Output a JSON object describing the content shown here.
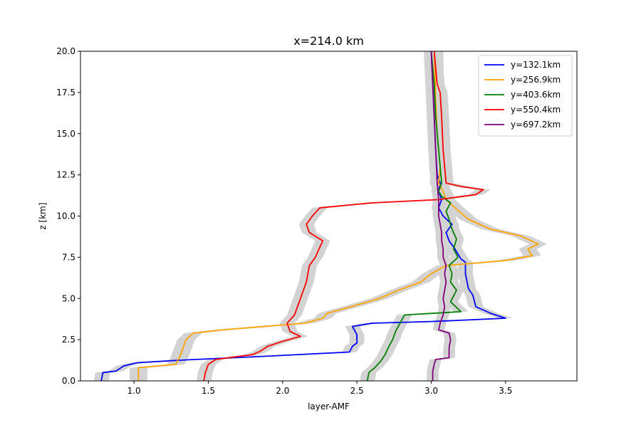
{
  "chart_data": {
    "type": "line",
    "title": "x=214.0 km",
    "xlabel": "layer-AMF",
    "ylabel": "z [km]",
    "xlim": [
      0.64,
      3.98
    ],
    "ylim": [
      0,
      20
    ],
    "xticks": [
      "1.0",
      "1.5",
      "2.0",
      "2.5",
      "3.0",
      "3.5"
    ],
    "yticks": [
      "0.0",
      "2.5",
      "5.0",
      "7.5",
      "10.0",
      "12.5",
      "15.0",
      "17.5",
      "20.0"
    ],
    "grid": false,
    "legend_position": "top-right",
    "uncertainty_band": "gray shading around each series",
    "series": [
      {
        "name": "y=132.1km",
        "color": "#0000ff",
        "band": 0.05,
        "points": [
          [
            0.78,
            0.0
          ],
          [
            0.79,
            0.5
          ],
          [
            0.88,
            0.6
          ],
          [
            0.93,
            0.9
          ],
          [
            1.02,
            1.1
          ],
          [
            1.3,
            1.25
          ],
          [
            1.9,
            1.5
          ],
          [
            2.45,
            1.75
          ],
          [
            2.47,
            2.1
          ],
          [
            2.5,
            2.3
          ],
          [
            2.5,
            2.8
          ],
          [
            2.47,
            3.3
          ],
          [
            2.6,
            3.5
          ],
          [
            3.0,
            3.6
          ],
          [
            3.5,
            3.8
          ],
          [
            3.4,
            4.1
          ],
          [
            3.3,
            4.5
          ],
          [
            3.28,
            5.2
          ],
          [
            3.25,
            5.6
          ],
          [
            3.23,
            6.5
          ],
          [
            3.23,
            7.2
          ],
          [
            3.2,
            7.4
          ],
          [
            3.16,
            8.0
          ],
          [
            3.12,
            8.5
          ],
          [
            3.1,
            9.0
          ],
          [
            3.14,
            9.5
          ],
          [
            3.08,
            10.0
          ],
          [
            3.05,
            10.5
          ],
          [
            3.07,
            11.0
          ],
          [
            3.05,
            11.5
          ],
          [
            3.06,
            12.0
          ],
          [
            3.04,
            12.5
          ],
          [
            3.03,
            14.0
          ],
          [
            3.02,
            16.0
          ],
          [
            3.01,
            18.0
          ],
          [
            3.0,
            20.0
          ]
        ]
      },
      {
        "name": "y=256.9km",
        "color": "#ffa500",
        "band": 0.06,
        "points": [
          [
            1.03,
            0.0
          ],
          [
            1.03,
            0.8
          ],
          [
            1.28,
            1.0
          ],
          [
            1.31,
            1.5
          ],
          [
            1.33,
            2.0
          ],
          [
            1.35,
            2.5
          ],
          [
            1.4,
            2.9
          ],
          [
            1.6,
            3.1
          ],
          [
            2.15,
            3.5
          ],
          [
            2.27,
            3.8
          ],
          [
            2.3,
            4.1
          ],
          [
            2.5,
            4.6
          ],
          [
            2.65,
            5.0
          ],
          [
            2.78,
            5.5
          ],
          [
            2.93,
            6.0
          ],
          [
            3.0,
            6.5
          ],
          [
            3.1,
            7.0
          ],
          [
            3.5,
            7.3
          ],
          [
            3.68,
            7.6
          ],
          [
            3.65,
            8.0
          ],
          [
            3.72,
            8.3
          ],
          [
            3.6,
            8.8
          ],
          [
            3.4,
            9.2
          ],
          [
            3.25,
            9.8
          ],
          [
            3.16,
            10.5
          ],
          [
            3.1,
            11.0
          ],
          [
            3.08,
            11.5
          ],
          [
            3.05,
            12.0
          ],
          [
            3.06,
            13.0
          ],
          [
            3.04,
            15.0
          ],
          [
            3.03,
            17.0
          ],
          [
            3.02,
            20.0
          ]
        ]
      },
      {
        "name": "y=403.6km",
        "color": "#008000",
        "band": 0.05,
        "points": [
          [
            2.57,
            0.0
          ],
          [
            2.58,
            0.5
          ],
          [
            2.62,
            0.8
          ],
          [
            2.66,
            1.2
          ],
          [
            2.69,
            1.6
          ],
          [
            2.71,
            2.0
          ],
          [
            2.74,
            2.5
          ],
          [
            2.76,
            3.0
          ],
          [
            2.79,
            3.5
          ],
          [
            2.82,
            4.0
          ],
          [
            3.2,
            4.2
          ],
          [
            3.13,
            4.8
          ],
          [
            3.17,
            5.5
          ],
          [
            3.13,
            6.0
          ],
          [
            3.14,
            6.5
          ],
          [
            3.12,
            7.0
          ],
          [
            3.18,
            7.5
          ],
          [
            3.15,
            8.0
          ],
          [
            3.17,
            8.6
          ],
          [
            3.14,
            9.2
          ],
          [
            3.12,
            9.8
          ],
          [
            3.1,
            10.3
          ],
          [
            3.13,
            10.8
          ],
          [
            3.07,
            11.2
          ],
          [
            3.05,
            11.5
          ],
          [
            3.07,
            12.0
          ],
          [
            3.06,
            13.0
          ],
          [
            3.05,
            14.0
          ],
          [
            3.04,
            15.0
          ],
          [
            3.03,
            16.0
          ],
          [
            3.02,
            18.0
          ],
          [
            3.0,
            20.0
          ]
        ]
      },
      {
        "name": "y=550.4km",
        "color": "#ff0000",
        "band": 0.05,
        "points": [
          [
            1.47,
            0.0
          ],
          [
            1.48,
            0.5
          ],
          [
            1.5,
            1.0
          ],
          [
            1.55,
            1.3
          ],
          [
            1.8,
            1.6
          ],
          [
            1.85,
            1.8
          ],
          [
            1.9,
            2.1
          ],
          [
            2.0,
            2.4
          ],
          [
            2.12,
            2.7
          ],
          [
            2.05,
            3.0
          ],
          [
            2.03,
            3.5
          ],
          [
            2.08,
            4.0
          ],
          [
            2.12,
            5.0
          ],
          [
            2.16,
            6.0
          ],
          [
            2.18,
            7.0
          ],
          [
            2.22,
            7.5
          ],
          [
            2.27,
            8.5
          ],
          [
            2.18,
            9.0
          ],
          [
            2.16,
            9.5
          ],
          [
            2.2,
            10.0
          ],
          [
            2.25,
            10.5
          ],
          [
            2.6,
            10.8
          ],
          [
            3.05,
            11.0
          ],
          [
            3.3,
            11.3
          ],
          [
            3.35,
            11.6
          ],
          [
            3.2,
            11.8
          ],
          [
            3.1,
            12.0
          ],
          [
            3.08,
            14.0
          ],
          [
            3.07,
            16.0
          ],
          [
            3.06,
            17.5
          ],
          [
            3.04,
            18.0
          ],
          [
            3.02,
            20.0
          ]
        ]
      },
      {
        "name": "y=697.2km",
        "color": "#800080",
        "band": 0.04,
        "points": [
          [
            3.01,
            0.0
          ],
          [
            3.01,
            0.6
          ],
          [
            3.02,
            1.0
          ],
          [
            3.03,
            1.3
          ],
          [
            3.12,
            1.4
          ],
          [
            3.12,
            2.0
          ],
          [
            3.13,
            2.5
          ],
          [
            3.12,
            2.9
          ],
          [
            3.05,
            3.1
          ],
          [
            3.06,
            3.5
          ],
          [
            3.08,
            4.0
          ],
          [
            3.09,
            4.5
          ],
          [
            3.08,
            5.0
          ],
          [
            3.09,
            5.5
          ],
          [
            3.1,
            6.0
          ],
          [
            3.09,
            6.5
          ],
          [
            3.1,
            7.0
          ],
          [
            3.08,
            7.5
          ],
          [
            3.08,
            8.0
          ],
          [
            3.07,
            8.5
          ],
          [
            3.07,
            9.0
          ],
          [
            3.06,
            9.5
          ],
          [
            3.05,
            10.0
          ],
          [
            3.05,
            11.0
          ],
          [
            3.04,
            12.0
          ],
          [
            3.03,
            14.0
          ],
          [
            3.02,
            16.0
          ],
          [
            3.01,
            18.0
          ],
          [
            3.0,
            20.0
          ]
        ]
      }
    ]
  }
}
